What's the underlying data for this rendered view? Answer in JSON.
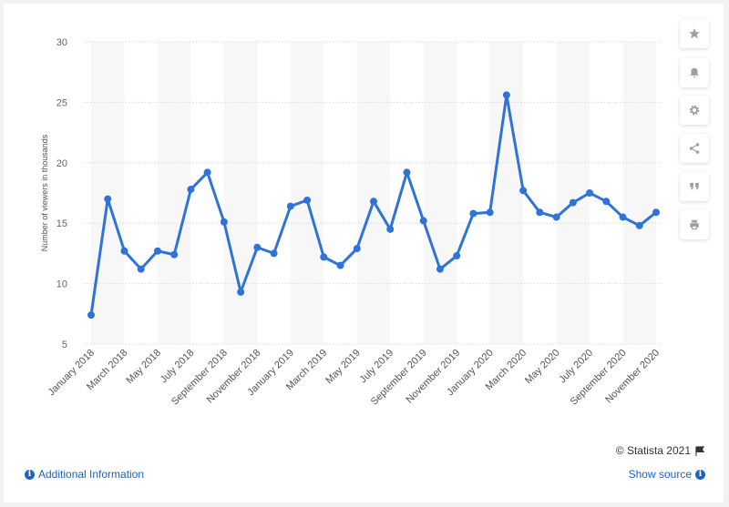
{
  "chart_data": {
    "type": "line",
    "ylabel": "Number of viewers in thousands",
    "xlabel": "",
    "ylim": [
      5,
      30
    ],
    "yticks": [
      5,
      10,
      15,
      20,
      25,
      30
    ],
    "grid": true,
    "legend": "none",
    "categories": [
      "January 2018",
      "February 2018",
      "March 2018",
      "April 2018",
      "May 2018",
      "June 2018",
      "July 2018",
      "August 2018",
      "September 2018",
      "October 2018",
      "November 2018",
      "December 2018",
      "January 2019",
      "February 2019",
      "March 2019",
      "April 2019",
      "May 2019",
      "June 2019",
      "July 2019",
      "August 2019",
      "September 2019",
      "October 2019",
      "November 2019",
      "December 2019",
      "January 2020",
      "February 2020",
      "March 2020",
      "April 2020",
      "May 2020",
      "June 2020",
      "July 2020",
      "August 2020",
      "September 2020",
      "October 2020",
      "November 2020"
    ],
    "values": [
      7.4,
      17.0,
      12.7,
      11.2,
      12.7,
      12.4,
      17.8,
      19.2,
      15.1,
      9.3,
      13.0,
      12.5,
      16.4,
      16.9,
      12.2,
      11.5,
      12.9,
      16.8,
      14.5,
      19.2,
      15.2,
      11.2,
      12.3,
      15.8,
      15.9,
      25.6,
      17.7,
      15.9,
      15.5,
      16.7,
      17.5,
      16.8,
      15.5,
      14.8,
      15.9
    ],
    "xticks_shown": [
      "January 2018",
      "March 2018",
      "May 2018",
      "July 2018",
      "September 2018",
      "November 2018",
      "January 2019",
      "March 2019",
      "May 2019",
      "July 2019",
      "September 2019",
      "November 2019",
      "January 2020",
      "March 2020",
      "May 2020",
      "July 2020",
      "September 2020",
      "November 2020"
    ],
    "line_color": "#2f73d8"
  },
  "footer": {
    "credit": "© Statista 2021",
    "additional_info": "Additional Information",
    "show_source": "Show source"
  },
  "toolbar": {
    "icons": [
      "star-icon",
      "bell-icon",
      "gear-icon",
      "share-icon",
      "quote-icon",
      "print-icon"
    ]
  }
}
